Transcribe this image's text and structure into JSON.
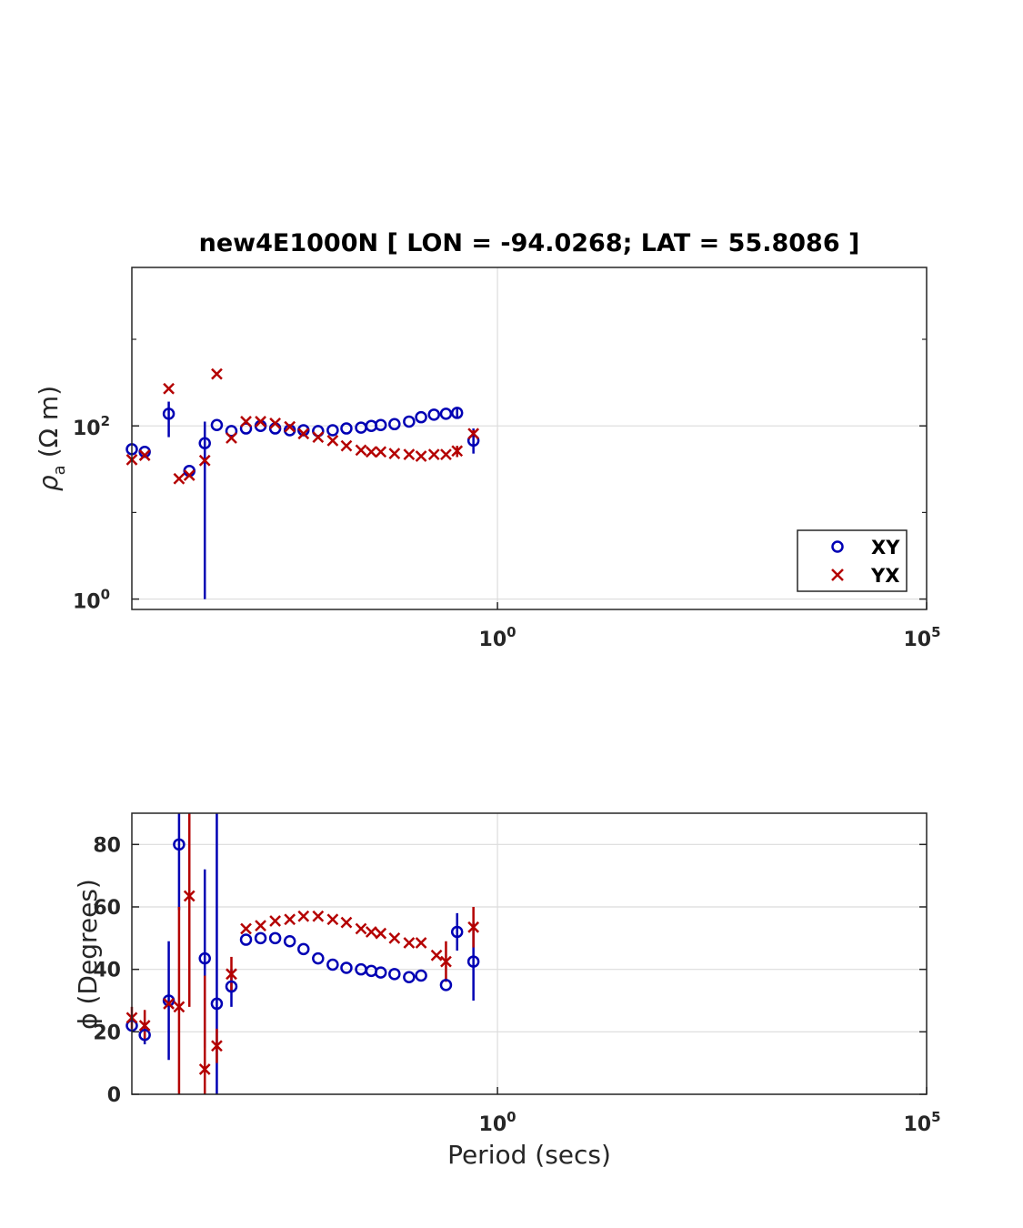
{
  "colors": {
    "xy": "#0000b4",
    "yx": "#b40000",
    "grid": "#dcdcdc",
    "axis": "#262626"
  },
  "chart_data": [
    {
      "type": "scatter",
      "title": "new4E1000N [ LON = -94.0268; LAT = 55.8086 ]",
      "ylabel": "ρa (Ω m)",
      "ylabel_symbol": "ρ",
      "ylabel_sub": "a",
      "ylabel_units": "(Ω m)",
      "xlabel": "",
      "xscale": "log",
      "yscale": "log",
      "xlim_exp": [
        -4.26,
        5
      ],
      "ylim_exp": [
        -0.12,
        3.83
      ],
      "xticks": [
        {
          "base": "10",
          "exp": "0",
          "value_exp": 0
        },
        {
          "base": "10",
          "exp": "5",
          "value_exp": 5
        }
      ],
      "yticks": [
        {
          "base": "10",
          "exp": "0",
          "value_exp": 0
        },
        {
          "base": "10",
          "exp": "2",
          "value_exp": 2
        }
      ],
      "legend": {
        "position": "bottom-right",
        "entries": [
          "XY",
          "YX"
        ]
      },
      "series": [
        {
          "name": "XY",
          "marker": "circle",
          "points": [
            {
              "logT": -4.26,
              "logRho": 1.73
            },
            {
              "logT": -4.11,
              "logRho": 1.7
            },
            {
              "logT": -3.83,
              "logRho": 2.14,
              "errLo": 1.87,
              "errHi": 2.28
            },
            {
              "logT": -3.59,
              "logRho": 1.48
            },
            {
              "logT": -3.41,
              "logRho": 1.8,
              "errLo": 0.0,
              "errHi": 2.05
            },
            {
              "logT": -3.27,
              "logRho": 2.01
            },
            {
              "logT": -3.1,
              "logRho": 1.94
            },
            {
              "logT": -2.93,
              "logRho": 1.97
            },
            {
              "logT": -2.76,
              "logRho": 2.0
            },
            {
              "logT": -2.59,
              "logRho": 1.97
            },
            {
              "logT": -2.42,
              "logRho": 1.95
            },
            {
              "logT": -2.26,
              "logRho": 1.95
            },
            {
              "logT": -2.09,
              "logRho": 1.94
            },
            {
              "logT": -1.92,
              "logRho": 1.95
            },
            {
              "logT": -1.76,
              "logRho": 1.97
            },
            {
              "logT": -1.59,
              "logRho": 1.98
            },
            {
              "logT": -1.47,
              "logRho": 2.0
            },
            {
              "logT": -1.36,
              "logRho": 2.01
            },
            {
              "logT": -1.2,
              "logRho": 2.02
            },
            {
              "logT": -1.03,
              "logRho": 2.05
            },
            {
              "logT": -0.89,
              "logRho": 2.1
            },
            {
              "logT": -0.74,
              "logRho": 2.13
            },
            {
              "logT": -0.6,
              "logRho": 2.14
            },
            {
              "logT": -0.47,
              "logRho": 2.15,
              "errLo": 2.09,
              "errHi": 2.21
            },
            {
              "logT": -0.28,
              "logRho": 1.83,
              "errLo": 1.68,
              "errHi": 1.97
            }
          ]
        },
        {
          "name": "YX",
          "marker": "cross",
          "points": [
            {
              "logT": -4.26,
              "logRho": 1.61
            },
            {
              "logT": -4.11,
              "logRho": 1.66
            },
            {
              "logT": -3.83,
              "logRho": 2.43
            },
            {
              "logT": -3.71,
              "logRho": 1.39
            },
            {
              "logT": -3.59,
              "logRho": 1.43
            },
            {
              "logT": -3.41,
              "logRho": 1.6
            },
            {
              "logT": -3.27,
              "logRho": 2.6
            },
            {
              "logT": -3.1,
              "logRho": 1.86
            },
            {
              "logT": -2.93,
              "logRho": 2.05
            },
            {
              "logT": -2.76,
              "logRho": 2.05
            },
            {
              "logT": -2.59,
              "logRho": 2.03
            },
            {
              "logT": -2.42,
              "logRho": 1.99
            },
            {
              "logT": -2.26,
              "logRho": 1.91
            },
            {
              "logT": -2.09,
              "logRho": 1.87
            },
            {
              "logT": -1.92,
              "logRho": 1.83
            },
            {
              "logT": -1.76,
              "logRho": 1.77
            },
            {
              "logT": -1.59,
              "logRho": 1.72
            },
            {
              "logT": -1.47,
              "logRho": 1.7
            },
            {
              "logT": -1.36,
              "logRho": 1.7
            },
            {
              "logT": -1.2,
              "logRho": 1.68
            },
            {
              "logT": -1.03,
              "logRho": 1.67
            },
            {
              "logT": -0.89,
              "logRho": 1.65
            },
            {
              "logT": -0.74,
              "logRho": 1.67
            },
            {
              "logT": -0.6,
              "logRho": 1.67
            },
            {
              "logT": -0.47,
              "logRho": 1.71,
              "errLo": 1.64,
              "errHi": 1.77
            },
            {
              "logT": -0.28,
              "logRho": 1.91,
              "errLo": 1.87,
              "errHi": 1.95
            }
          ]
        }
      ]
    },
    {
      "type": "scatter",
      "title": "",
      "ylabel": "ϕ (Degrees)",
      "xlabel": "Period (secs)",
      "xscale": "log",
      "yscale": "linear",
      "xlim_exp": [
        -4.26,
        5
      ],
      "ylim": [
        0,
        90
      ],
      "xticks": [
        {
          "base": "10",
          "exp": "0",
          "value_exp": 0
        },
        {
          "base": "10",
          "exp": "5",
          "value_exp": 5
        }
      ],
      "yticks": [
        "0",
        "20",
        "40",
        "60",
        "80"
      ],
      "series": [
        {
          "name": "XY",
          "marker": "circle",
          "points": [
            {
              "logT": -4.26,
              "phi": 22.0
            },
            {
              "logT": -4.11,
              "phi": 19.0,
              "errLo": 16.0,
              "errHi": 22.0
            },
            {
              "logT": -3.83,
              "phi": 30.0,
              "errLo": 11.0,
              "errHi": 49.0
            },
            {
              "logT": -3.71,
              "phi": 80.0,
              "errLo": 59.0,
              "errHi": 90.0
            },
            {
              "logT": -3.41,
              "phi": 43.5,
              "errLo": 15.0,
              "errHi": 72.0
            },
            {
              "logT": -3.27,
              "phi": 29.0,
              "errLo": 0.0,
              "errHi": 90.0
            },
            {
              "logT": -3.1,
              "phi": 34.5,
              "errLo": 28.0,
              "errHi": 40.0
            },
            {
              "logT": -2.93,
              "phi": 49.5
            },
            {
              "logT": -2.76,
              "phi": 50.0
            },
            {
              "logT": -2.59,
              "phi": 50.0
            },
            {
              "logT": -2.42,
              "phi": 49.0
            },
            {
              "logT": -2.26,
              "phi": 46.5
            },
            {
              "logT": -2.09,
              "phi": 43.5
            },
            {
              "logT": -1.92,
              "phi": 41.5
            },
            {
              "logT": -1.76,
              "phi": 40.5
            },
            {
              "logT": -1.59,
              "phi": 40.0
            },
            {
              "logT": -1.47,
              "phi": 39.5
            },
            {
              "logT": -1.36,
              "phi": 39.0
            },
            {
              "logT": -1.2,
              "phi": 38.5
            },
            {
              "logT": -1.03,
              "phi": 37.5
            },
            {
              "logT": -0.89,
              "phi": 38.0
            },
            {
              "logT": -0.6,
              "phi": 35.0
            },
            {
              "logT": -0.47,
              "phi": 52.0,
              "errLo": 46.0,
              "errHi": 58.0
            },
            {
              "logT": -0.28,
              "phi": 42.5,
              "errLo": 30.0,
              "errHi": 55.0
            }
          ]
        },
        {
          "name": "YX",
          "marker": "cross",
          "points": [
            {
              "logT": -4.26,
              "phi": 24.5,
              "errLo": 21.0,
              "errHi": 28.0
            },
            {
              "logT": -4.11,
              "phi": 22.0,
              "errLo": 17.0,
              "errHi": 27.0
            },
            {
              "logT": -3.83,
              "phi": 29.0
            },
            {
              "logT": -3.71,
              "phi": 28.0,
              "errLo": 0.0,
              "errHi": 60.0
            },
            {
              "logT": -3.59,
              "phi": 63.5,
              "errLo": 28.0,
              "errHi": 90.0
            },
            {
              "logT": -3.41,
              "phi": 8.0,
              "errLo": 0.0,
              "errHi": 38.0
            },
            {
              "logT": -3.27,
              "phi": 15.5,
              "errLo": 10.0,
              "errHi": 21.0
            },
            {
              "logT": -3.1,
              "phi": 38.5,
              "errLo": 33.0,
              "errHi": 44.0
            },
            {
              "logT": -2.93,
              "phi": 53.0
            },
            {
              "logT": -2.76,
              "phi": 54.0
            },
            {
              "logT": -2.59,
              "phi": 55.5
            },
            {
              "logT": -2.42,
              "phi": 56.0
            },
            {
              "logT": -2.26,
              "phi": 57.0
            },
            {
              "logT": -2.09,
              "phi": 57.0
            },
            {
              "logT": -1.92,
              "phi": 56.0
            },
            {
              "logT": -1.76,
              "phi": 55.0
            },
            {
              "logT": -1.59,
              "phi": 53.0
            },
            {
              "logT": -1.47,
              "phi": 52.0
            },
            {
              "logT": -1.36,
              "phi": 51.5
            },
            {
              "logT": -1.2,
              "phi": 50.0
            },
            {
              "logT": -1.03,
              "phi": 48.5
            },
            {
              "logT": -0.89,
              "phi": 48.5
            },
            {
              "logT": -0.71,
              "phi": 44.5
            },
            {
              "logT": -0.6,
              "phi": 42.5,
              "errLo": 36.0,
              "errHi": 49.0
            },
            {
              "logT": -0.28,
              "phi": 53.5,
              "errLo": 47.0,
              "errHi": 60.0
            }
          ]
        }
      ]
    }
  ]
}
